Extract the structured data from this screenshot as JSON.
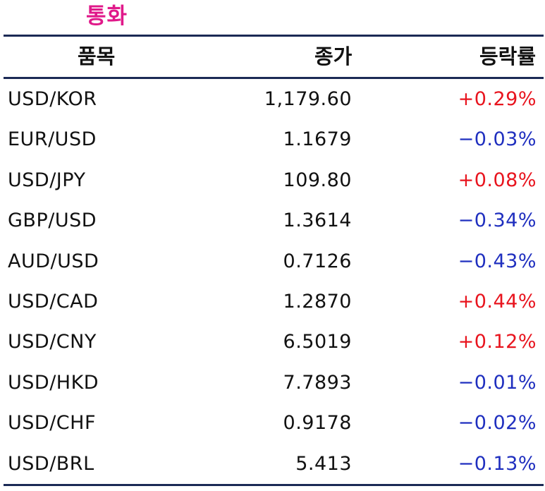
{
  "title": "통화",
  "colors": {
    "title": "#e0198a",
    "rule": "#1b2a55",
    "up": "#e8141e",
    "down": "#1f2fbf",
    "text": "#111111"
  },
  "table": {
    "headers": {
      "name": "품목",
      "close": "종가",
      "change": "등락률"
    },
    "rows": [
      {
        "name": "USD/KOR",
        "close": "1,179.60",
        "change": "+0.29%",
        "direction": "up"
      },
      {
        "name": "EUR/USD",
        "close": "1.1679",
        "change": "−0.03%",
        "direction": "down"
      },
      {
        "name": "USD/JPY",
        "close": "109.80",
        "change": "+0.08%",
        "direction": "up"
      },
      {
        "name": "GBP/USD",
        "close": "1.3614",
        "change": "−0.34%",
        "direction": "down"
      },
      {
        "name": "AUD/USD",
        "close": "0.7126",
        "change": "−0.43%",
        "direction": "down"
      },
      {
        "name": "USD/CAD",
        "close": "1.2870",
        "change": "+0.44%",
        "direction": "up"
      },
      {
        "name": "USD/CNY",
        "close": "6.5019",
        "change": "+0.12%",
        "direction": "up"
      },
      {
        "name": "USD/HKD",
        "close": "7.7893",
        "change": "−0.01%",
        "direction": "down"
      },
      {
        "name": "USD/CHF",
        "close": "0.9178",
        "change": "−0.02%",
        "direction": "down"
      },
      {
        "name": "USD/BRL",
        "close": "5.413",
        "change": "−0.13%",
        "direction": "down"
      }
    ]
  }
}
